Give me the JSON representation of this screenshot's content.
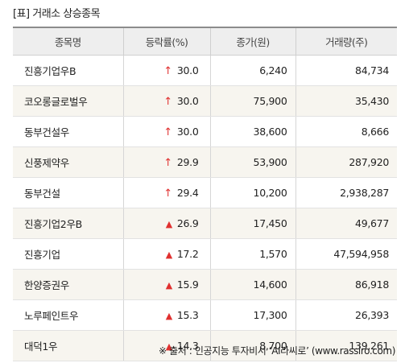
{
  "title": "[표] 거래소 상승종목",
  "headers": [
    "종목명",
    "등락률(%)",
    "종가(원)",
    "거래량(주)"
  ],
  "colors": {
    "up": "#e0302f",
    "header_bg": "#eeeeee",
    "stripe_bg": "#f7f5ef"
  },
  "rows": [
    {
      "name": "진흥기업우B",
      "marker": "arrow-up-icon",
      "rate": "30.0",
      "price": "6,240",
      "volume": "84,734"
    },
    {
      "name": "코오롱글로벌우",
      "marker": "arrow-up-icon",
      "rate": "30.0",
      "price": "75,900",
      "volume": "35,430"
    },
    {
      "name": "동부건설우",
      "marker": "arrow-up-icon",
      "rate": "30.0",
      "price": "38,600",
      "volume": "8,666"
    },
    {
      "name": "신풍제약우",
      "marker": "arrow-up-icon",
      "rate": "29.9",
      "price": "53,900",
      "volume": "287,920"
    },
    {
      "name": "동부건설",
      "marker": "arrow-up-icon",
      "rate": "29.4",
      "price": "10,200",
      "volume": "2,938,287"
    },
    {
      "name": "진흥기업2우B",
      "marker": "triangle-up-icon",
      "rate": "26.9",
      "price": "17,450",
      "volume": "49,677"
    },
    {
      "name": "진흥기업",
      "marker": "triangle-up-icon",
      "rate": "17.2",
      "price": "1,570",
      "volume": "47,594,958"
    },
    {
      "name": "한양증권우",
      "marker": "triangle-up-icon",
      "rate": "15.9",
      "price": "14,600",
      "volume": "86,918"
    },
    {
      "name": "노루페인트우",
      "marker": "triangle-up-icon",
      "rate": "15.3",
      "price": "17,300",
      "volume": "26,393"
    },
    {
      "name": "대덕1우",
      "marker": "triangle-up-icon",
      "rate": "14.3",
      "price": "8,700",
      "volume": "139,261"
    }
  ],
  "footer": "※ 출처 : 인공지능 투자비서 ‘AI라씨로’ (www.rassiro.com)"
}
